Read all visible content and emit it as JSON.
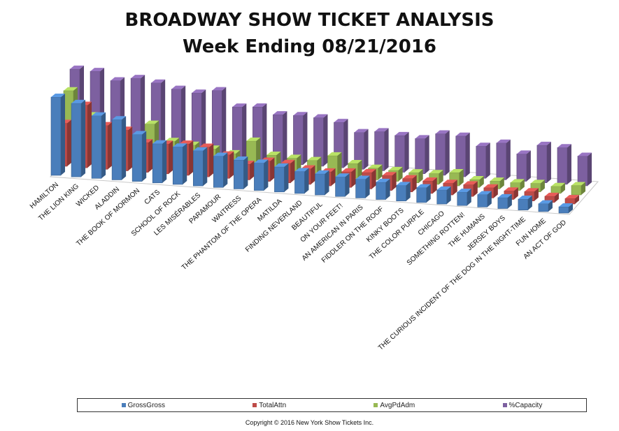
{
  "chart_data": {
    "type": "bar",
    "title": "BROADWAY SHOW TICKET ANALYSIS",
    "subtitle": "Week Ending 08/21/2016",
    "categories": [
      "HAMILTON",
      "THE LION KING",
      "WICKED",
      "ALADDIN",
      "THE BOOK OF MORMON",
      "CATS",
      "SCHOOL OF ROCK",
      "LES MISÉRABLES",
      "PARAMOUR",
      "WAITRESS",
      "THE PHANTOM OF THE OPERA",
      "MATILDA",
      "FINDING NEVERLAND",
      "BEAUTIFUL",
      "ON YOUR FEET!",
      "AN AMERICAN IN PARIS",
      "FIDDLER ON THE ROOF",
      "KINKY BOOTS",
      "THE COLOR PURPLE",
      "CHICAGO",
      "SOMETHING ROTTEN!",
      "THE HUMANS",
      "JERSEY BOYS",
      "THE CURIOUS INCIDENT OF THE DOG IN THE NIGHT-TIME",
      "FUN HOME",
      "AN ACT OF GOD"
    ],
    "series": [
      {
        "name": "GrossGross",
        "color": "#4a7ebb",
        "values": [
          100,
          94,
          80,
          77,
          60,
          50,
          48,
          45,
          40,
          37,
          35,
          32,
          28,
          27,
          25,
          24,
          22,
          20,
          19,
          18,
          17,
          16,
          14,
          14,
          10,
          8
        ]
      },
      {
        "name": "TotalAttn",
        "color": "#be4b48",
        "values": [
          55,
          80,
          56,
          52,
          38,
          38,
          40,
          38,
          30,
          20,
          26,
          25,
          20,
          18,
          20,
          21,
          19,
          17,
          16,
          15,
          15,
          13,
          11,
          12,
          8,
          7
        ]
      },
      {
        "name": "AvgPdAdm",
        "color": "#98b954",
        "values": [
          85,
          55,
          40,
          30,
          50,
          30,
          27,
          24,
          20,
          38,
          22,
          20,
          19,
          27,
          19,
          15,
          14,
          13,
          14,
          17,
          10,
          10,
          10,
          11,
          9,
          12
        ]
      },
      {
        "name": "%Capacity",
        "color": "#7d60a0",
        "values": [
          101,
          100,
          90,
          95,
          91,
          85,
          82,
          87,
          68,
          70,
          62,
          63,
          62,
          58,
          47,
          50,
          47,
          45,
          53,
          52,
          41,
          47,
          35,
          48,
          47,
          38
        ]
      }
    ]
  },
  "legend": {
    "items": [
      {
        "label": "GrossGross",
        "color": "#4a7ebb"
      },
      {
        "label": "TotalAttn",
        "color": "#be4b48"
      },
      {
        "label": "AvgPdAdm",
        "color": "#98b954"
      },
      {
        "label": "%Capacity",
        "color": "#7d60a0"
      }
    ]
  },
  "copyright": "Copyright © 2016 New York Show Tickets Inc."
}
